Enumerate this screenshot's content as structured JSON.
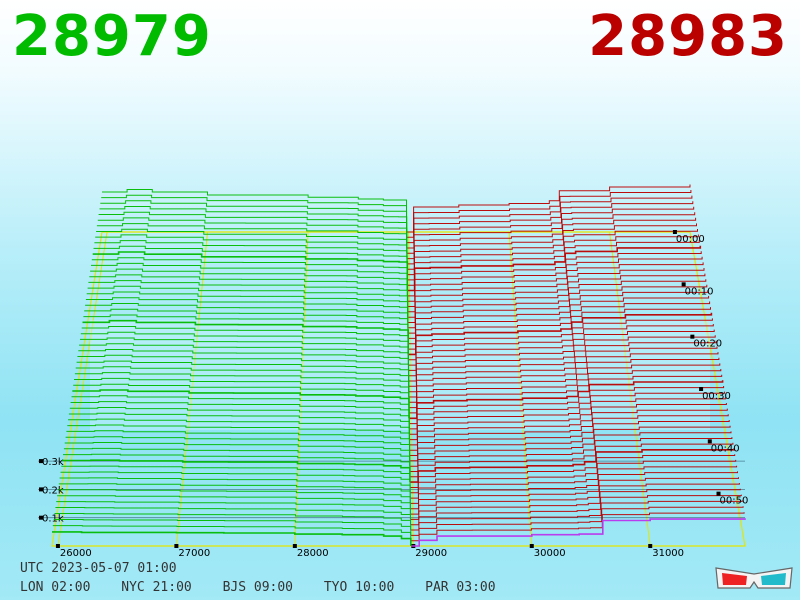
{
  "header": {
    "bid_price": "28979",
    "ask_price": "28983",
    "bid_color": "#00bb00",
    "ask_color": "#bb0000"
  },
  "footer": {
    "utc_line": "UTC 2023-05-07 01:00",
    "timezones": [
      "LON 02:00",
      "NYC 21:00",
      "BJS 09:00",
      "TYO 10:00",
      "PAR 03:00"
    ]
  },
  "icons": [
    "3d-glasses-icon"
  ],
  "chart_data": {
    "type": "3d-depth-chart",
    "title": "",
    "x": {
      "label": "",
      "ticks": [
        "26000",
        "27000",
        "28000",
        "29000",
        "30000",
        "31000"
      ],
      "range": [
        25950,
        31800
      ]
    },
    "y": {
      "label": "",
      "ticks": [
        "0.1k",
        "0.2k",
        "0.3k"
      ],
      "range": [
        0,
        350
      ]
    },
    "z": {
      "label": "",
      "ticks": [
        "00:00",
        "00:10",
        "00:20",
        "00:30",
        "00:40",
        "00:50"
      ],
      "range": [
        "00:00",
        "01:00"
      ]
    },
    "mid_price": 28981,
    "snapshots": 60,
    "series": [
      {
        "side": "bid",
        "color": "#00bb00",
        "newest": [
          [
            25950,
            50
          ],
          [
            26200,
            48
          ],
          [
            27000,
            47
          ],
          [
            27400,
            46
          ],
          [
            28000,
            42
          ],
          [
            28400,
            40
          ],
          [
            28750,
            35
          ],
          [
            28900,
            26
          ],
          [
            28979,
            0
          ]
        ],
        "oldest": [
          [
            25950,
            160
          ],
          [
            26200,
            170
          ],
          [
            26450,
            160
          ],
          [
            27000,
            148
          ],
          [
            28000,
            139
          ],
          [
            28500,
            132
          ],
          [
            28750,
            128
          ],
          [
            28979,
            0
          ]
        ]
      },
      {
        "side": "ask",
        "color": "#bb0000",
        "newest": [
          [
            28983,
            0
          ],
          [
            29050,
            20
          ],
          [
            29200,
            35
          ],
          [
            30000,
            40
          ],
          [
            30400,
            42
          ],
          [
            30600,
            90
          ],
          [
            31000,
            95
          ],
          [
            31800,
            98
          ]
        ],
        "oldest": [
          [
            28983,
            0
          ],
          [
            29050,
            100
          ],
          [
            29500,
            108
          ],
          [
            30000,
            114
          ],
          [
            30400,
            125
          ],
          [
            30500,
            165
          ],
          [
            31000,
            180
          ],
          [
            31800,
            190
          ]
        ]
      }
    ],
    "frame_color": "#e6e600",
    "axis_label_color": "#000000"
  }
}
